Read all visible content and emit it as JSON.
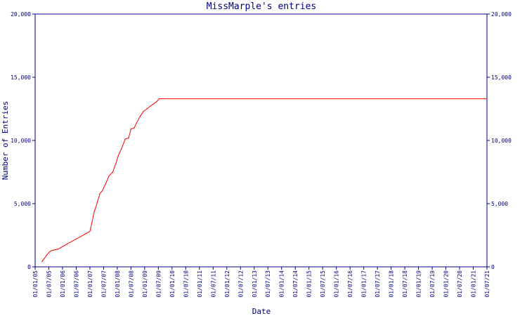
{
  "chart_data": {
    "type": "line",
    "title": "MissMarple's entries",
    "xlabel": "Date",
    "ylabel": "Number of Entries",
    "ylim": [
      0,
      20000
    ],
    "y_ticks": [
      0,
      5000,
      10000,
      15000,
      20000
    ],
    "y_tick_labels": [
      "0",
      "5,000",
      "10,000",
      "15,000",
      "20,000"
    ],
    "right_axis": true,
    "grid": false,
    "legend": "none",
    "line_color": "#ff0000",
    "axis_color": "#000080",
    "x_tick_labels": [
      "01/01/05",
      "01/07/05",
      "01/01/06",
      "01/07/06",
      "01/01/07",
      "01/07/07",
      "01/01/08",
      "01/07/08",
      "01/01/09",
      "01/07/09",
      "01/01/10",
      "01/07/10",
      "01/01/11",
      "01/07/11",
      "01/01/12",
      "01/07/12",
      "01/01/13",
      "01/07/13",
      "01/01/14",
      "01/07/14",
      "01/01/15",
      "01/07/15",
      "01/01/16",
      "01/07/16",
      "01/01/17",
      "01/07/17",
      "01/01/18",
      "01/07/18",
      "01/01/19",
      "01/07/19",
      "01/01/20",
      "01/07/20",
      "01/01/21",
      "01/07/21"
    ],
    "series": [
      {
        "x": [
          "2005-04-01",
          "2005-06-01",
          "2005-07-15",
          "2005-08-15",
          "2005-11-01",
          "2006-01-01",
          "2006-03-01",
          "2006-05-01",
          "2006-07-01",
          "2006-09-01",
          "2006-11-01",
          "2007-01-01",
          "2007-02-01",
          "2007-03-01",
          "2007-03-15",
          "2007-04-15",
          "2007-05-15",
          "2007-06-15",
          "2007-08-01",
          "2007-09-15",
          "2007-11-01",
          "2007-12-15",
          "2008-01-15",
          "2008-03-01",
          "2008-04-15",
          "2008-06-01",
          "2008-07-01",
          "2008-08-15",
          "2008-09-15",
          "2008-11-01",
          "2008-12-15",
          "2009-02-01",
          "2009-03-15",
          "2009-05-01",
          "2009-06-15",
          "2009-07-15",
          "2009-08-01",
          "2021-07-01"
        ],
        "values": [
          400,
          900,
          1200,
          1300,
          1400,
          1600,
          1800,
          2000,
          2200,
          2400,
          2600,
          2800,
          3600,
          4400,
          4600,
          5200,
          5800,
          6000,
          6600,
          7200,
          7500,
          8200,
          8800,
          9400,
          10100,
          10200,
          10900,
          11000,
          11400,
          11900,
          12300,
          12500,
          12700,
          12900,
          13100,
          13300,
          13300,
          13300
        ]
      }
    ]
  }
}
